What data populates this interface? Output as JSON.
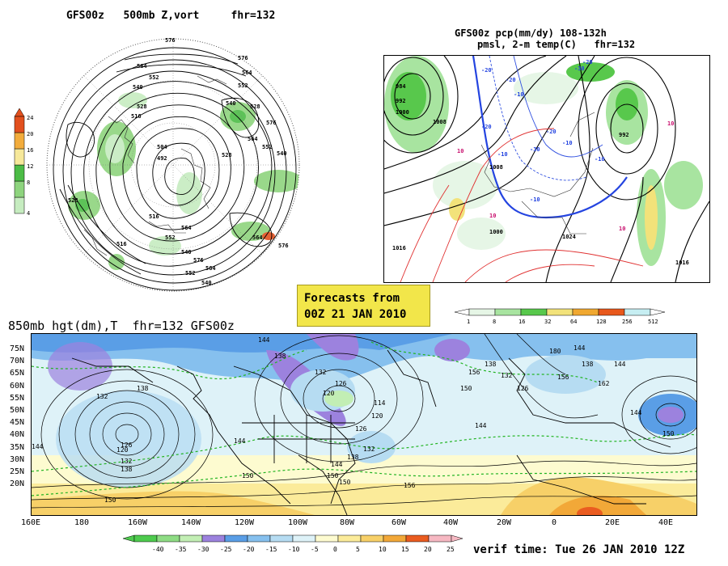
{
  "panel_500mb": {
    "title": "GFS00z   500mb Z,vort     fhr=132",
    "colorbar": {
      "levels": [
        "4",
        "8",
        "12",
        "16",
        "20",
        "24"
      ],
      "colors": [
        "#c6ecc0",
        "#8ed47e",
        "#4cbc46",
        "#f6e89a",
        "#f2ac3c",
        "#e2501e"
      ]
    },
    "contour_labels": [
      "576",
      "564",
      "552",
      "540",
      "528",
      "516",
      "504",
      "492",
      "576",
      "564",
      "552",
      "540",
      "528",
      "576",
      "564",
      "552",
      "540",
      "528",
      "516",
      "564",
      "552",
      "540",
      "576",
      "564",
      "552",
      "540",
      "528",
      "516",
      "564",
      "576"
    ]
  },
  "panel_pcp": {
    "title_line1": "GFS00z pcp(mm/dy) 108-132h",
    "title_line2": "pmsl, 2-m temp(C)   fhr=132",
    "colorbar": {
      "levels": [
        "1",
        "8",
        "16",
        "32",
        "64",
        "128",
        "256",
        "512"
      ],
      "colors": [
        "#e6f6e6",
        "#a8e4a0",
        "#58c84c",
        "#f2e27a",
        "#f0a830",
        "#e8581c",
        "#c6eef2"
      ]
    },
    "isobar_labels": [
      "984",
      "992",
      "1000",
      "1008",
      "1000",
      "1024",
      "1008",
      "1016",
      "1016",
      "992"
    ],
    "temp_labels": [
      "-20",
      "-20",
      "-10",
      "-20",
      "-10",
      "-20",
      "-10",
      "-30",
      "-20",
      "-10",
      "-10",
      "10",
      "10",
      "10",
      "10",
      "-30"
    ]
  },
  "forecast_stamp": {
    "line1": "Forecasts from",
    "line2": "00Z 21 JAN 2010"
  },
  "panel_850mb": {
    "title": "850mb hgt(dm),T  fhr=132 GFS00z",
    "lat_labels": [
      "75N",
      "70N",
      "65N",
      "60N",
      "55N",
      "50N",
      "45N",
      "40N",
      "35N",
      "30N",
      "25N",
      "20N"
    ],
    "lon_labels": [
      "160E",
      "180",
      "160W",
      "140W",
      "120W",
      "100W",
      "80W",
      "60W",
      "40W",
      "20W",
      "0",
      "20E",
      "40E"
    ],
    "height_labels": [
      "144",
      "138",
      "150",
      "132",
      "126",
      "120",
      "132",
      "138",
      "144",
      "150",
      "150",
      "144",
      "138",
      "132",
      "126",
      "120",
      "114",
      "120",
      "126",
      "132",
      "138",
      "144",
      "150",
      "156",
      "156",
      "150",
      "144",
      "138",
      "132",
      "126",
      "180",
      "144",
      "138",
      "144",
      "156",
      "162",
      "150",
      "144"
    ],
    "colorbar": {
      "levels": [
        "-40",
        "-35",
        "-30",
        "-25",
        "-20",
        "-15",
        "-10",
        "-5",
        "0",
        "5",
        "10",
        "15",
        "20",
        "25"
      ],
      "colors": [
        "#4ecb4e",
        "#8edc84",
        "#c2eeb4",
        "#9c82de",
        "#5a9ee6",
        "#86c0ee",
        "#b6dcf2",
        "#def2f8",
        "#fdfbd0",
        "#fbeb9a",
        "#f7d068",
        "#f2a838",
        "#ea5c20",
        "#f6b8c2"
      ]
    }
  },
  "verif_time": "verif time: Tue 26 JAN 2010 12Z"
}
